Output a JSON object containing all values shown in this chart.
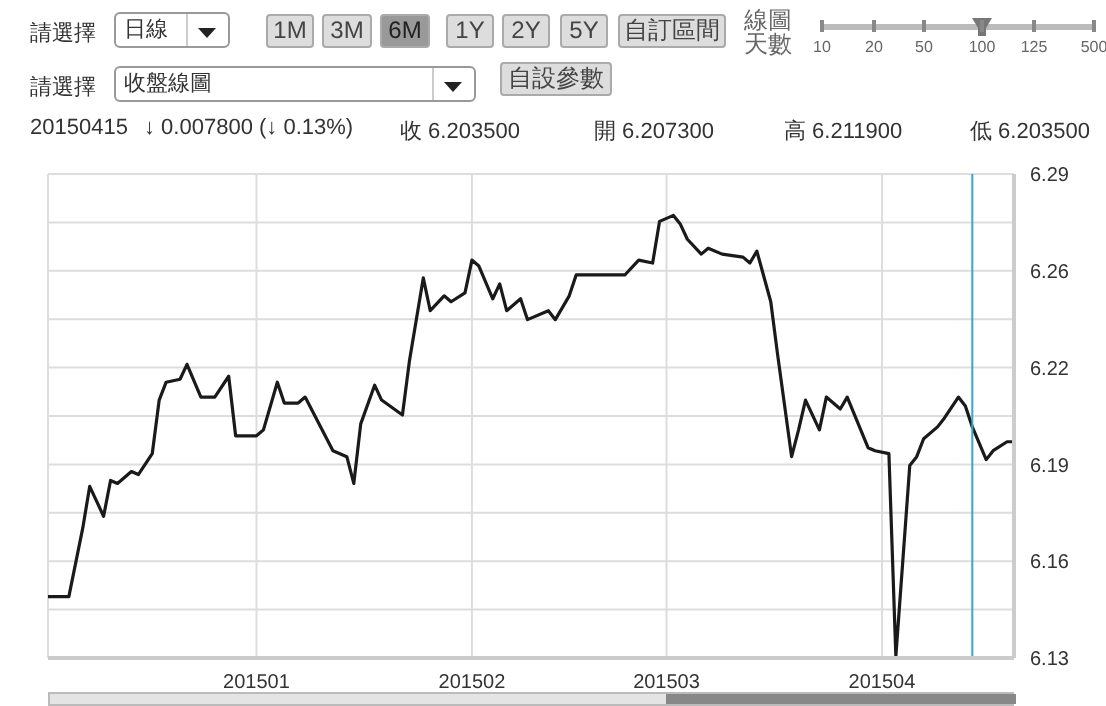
{
  "chart_data": {
    "type": "line",
    "annotations": [
      "請選擇",
      "日線",
      "1M",
      "3M",
      "6M",
      "1Y",
      "2Y",
      "5Y",
      "自訂區間",
      "線圖天數",
      "10",
      "20",
      "50",
      "100",
      "125",
      "500",
      "請選擇",
      "收盤線圖",
      "自設參數",
      "20150415",
      "↓ 0.007800 (↓ 0.13%)",
      "收 6.203500",
      "開 6.207300",
      "高 6.211900",
      "低 6.203500"
    ],
    "x": [
      "2014-12-02",
      "2014-12-05",
      "2014-12-07",
      "2014-12-08",
      "2014-12-10",
      "2014-12-11",
      "2014-12-12",
      "2014-12-14",
      "2014-12-15",
      "2014-12-17",
      "2014-12-18",
      "2014-12-19",
      "2014-12-21",
      "2014-12-22",
      "2014-12-24",
      "2014-12-26",
      "2014-12-28",
      "2014-12-29",
      "2015-01-01",
      "2015-01-02",
      "2015-01-04",
      "2015-01-05",
      "2015-01-07",
      "2015-01-08",
      "2015-01-12",
      "2015-01-14",
      "2015-01-15",
      "2015-01-16",
      "2015-01-18",
      "2015-01-19",
      "2015-01-22",
      "2015-01-23",
      "2015-01-25",
      "2015-01-26",
      "2015-01-28",
      "2015-01-29",
      "2015-01-31",
      "2015-02-01",
      "2015-02-02",
      "2015-02-04",
      "2015-02-05",
      "2015-02-06",
      "2015-02-08",
      "2015-02-09",
      "2015-02-12",
      "2015-02-13",
      "2015-02-15",
      "2015-02-16",
      "2015-02-23",
      "2015-02-25",
      "2015-02-27",
      "2015-02-28",
      "2015-03-02",
      "2015-03-03",
      "2015-03-04",
      "2015-03-06",
      "2015-03-07",
      "2015-03-09",
      "2015-03-12",
      "2015-03-13",
      "2015-03-14",
      "2015-03-16",
      "2015-03-17",
      "2015-03-19",
      "2015-03-20",
      "2015-03-21",
      "2015-03-23",
      "2015-03-24",
      "2015-03-26",
      "2015-03-27",
      "2015-03-30",
      "2015-03-31",
      "2015-04-02",
      "2015-04-03",
      "2015-04-05",
      "2015-04-06",
      "2015-04-07",
      "2015-04-09",
      "2015-04-10",
      "2015-04-12",
      "2015-04-13",
      "2015-04-14",
      "2015-04-16",
      "2015-04-17",
      "2015-04-19",
      "2015-04-20"
    ],
    "series": [
      {
        "color": "#1a1a1a",
        "values": [
          6.148,
          6.148,
          6.171,
          6.185,
          6.175,
          6.187,
          6.186,
          6.19,
          6.189,
          6.196,
          6.214,
          6.22,
          6.221,
          6.226,
          6.215,
          6.215,
          6.222,
          6.202,
          6.202,
          6.204,
          6.22,
          6.213,
          6.213,
          6.215,
          6.197,
          6.195,
          6.186,
          6.206,
          6.219,
          6.214,
          6.209,
          6.227,
          6.255,
          6.244,
          6.249,
          6.247,
          6.25,
          6.261,
          6.259,
          6.248,
          6.253,
          6.244,
          6.248,
          6.241,
          6.244,
          6.241,
          6.249,
          6.256,
          6.256,
          6.261,
          6.26,
          6.274,
          6.276,
          6.273,
          6.268,
          6.263,
          6.265,
          6.263,
          6.262,
          6.26,
          6.264,
          6.247,
          6.229,
          6.195,
          6.204,
          6.214,
          6.204,
          6.215,
          6.211,
          6.215,
          6.198,
          6.197,
          6.196,
          6.128,
          6.192,
          6.195,
          6.201,
          6.205,
          6.208,
          6.215,
          6.212,
          6.205,
          6.194,
          6.197,
          6.2,
          6.2
        ]
      }
    ],
    "xlim": [
      "2014-12-02",
      "2015-04-20"
    ],
    "xticks": [
      {
        "value": "2015-01-01",
        "label": "201501"
      },
      {
        "value": "2015-02-01",
        "label": "201502"
      },
      {
        "value": "2015-03-01",
        "label": "201503"
      },
      {
        "value": "2015-04-01",
        "label": "201504"
      }
    ],
    "ylim": [
      6.1274,
      6.2899
    ],
    "yticks": [
      {
        "value": 6.1274,
        "label": "6.13"
      },
      {
        "value": 6.14365,
        "label": null
      },
      {
        "value": 6.1599,
        "label": "6.16"
      },
      {
        "value": 6.17615,
        "label": null
      },
      {
        "value": 6.1924,
        "label": "6.19"
      },
      {
        "value": 6.20865,
        "label": null
      },
      {
        "value": 6.2249,
        "label": "6.22"
      },
      {
        "value": 6.24115,
        "label": null
      },
      {
        "value": 6.2574,
        "label": "6.26"
      },
      {
        "value": 6.27365,
        "label": null
      },
      {
        "value": 6.2899,
        "label": "6.29"
      }
    ],
    "ref_lines": [
      {
        "axis": "x",
        "value": "2015-04-14",
        "color": "#3aa6c4"
      }
    ],
    "grid": true,
    "legend": false,
    "marker": "none",
    "line_style": "solid"
  }
}
